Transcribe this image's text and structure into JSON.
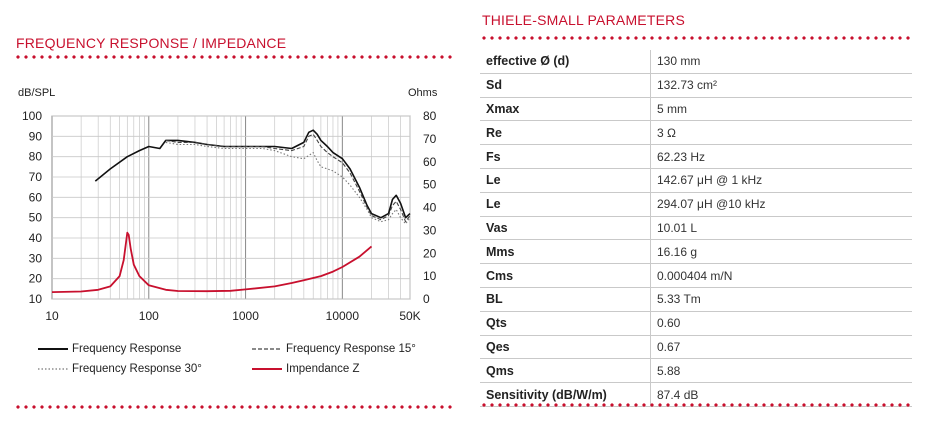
{
  "left_title": "FREQUENCY RESPONSE / IMPEDANCE",
  "right_title": "THIELE-SMALL PARAMETERS",
  "legend": {
    "fr": "Frequency Response",
    "fr15": "Frequency Response 15°",
    "fr30": "Frequency Response 30°",
    "imp": "Impendance Z"
  },
  "colors": {
    "accent": "#c8102e",
    "impedance": "#c8102e",
    "response": "#111111"
  },
  "chart_data": {
    "type": "line",
    "xscale": "log",
    "xlim": [
      10,
      50000
    ],
    "x_ticks": [
      "10",
      "100",
      "1000",
      "10000",
      "50K"
    ],
    "ylabel_left": "dB/SPL",
    "ylabel_right": "Ohms",
    "ylim_left": [
      10,
      100
    ],
    "ylim_right": [
      0,
      80
    ],
    "y_ticks_left": [
      "10",
      "20",
      "30",
      "40",
      "50",
      "60",
      "70",
      "80",
      "90",
      "100"
    ],
    "y_ticks_right": [
      "0",
      "10",
      "20",
      "30",
      "40",
      "50",
      "60",
      "70",
      "80"
    ],
    "grid": true,
    "series": [
      {
        "name": "Frequency Response",
        "axis": "left",
        "style": "solid",
        "points": [
          [
            28,
            68
          ],
          [
            40,
            74
          ],
          [
            60,
            80
          ],
          [
            80,
            83
          ],
          [
            100,
            85
          ],
          [
            130,
            84
          ],
          [
            150,
            88
          ],
          [
            200,
            88
          ],
          [
            300,
            87
          ],
          [
            400,
            86
          ],
          [
            600,
            85
          ],
          [
            1000,
            85
          ],
          [
            1500,
            85
          ],
          [
            2000,
            85
          ],
          [
            3000,
            84
          ],
          [
            4000,
            87
          ],
          [
            4500,
            92
          ],
          [
            5000,
            93
          ],
          [
            5500,
            91
          ],
          [
            6000,
            88
          ],
          [
            7000,
            85
          ],
          [
            8000,
            82
          ],
          [
            10000,
            79
          ],
          [
            12000,
            74
          ],
          [
            15000,
            65
          ],
          [
            18000,
            56
          ],
          [
            20000,
            52
          ],
          [
            25000,
            50
          ],
          [
            30000,
            52
          ],
          [
            33000,
            59
          ],
          [
            36000,
            61
          ],
          [
            40000,
            57
          ],
          [
            45000,
            50
          ],
          [
            50000,
            52
          ]
        ]
      },
      {
        "name": "Frequency Response 15°",
        "axis": "left",
        "style": "dashed",
        "points": [
          [
            150,
            88
          ],
          [
            200,
            87
          ],
          [
            300,
            87
          ],
          [
            400,
            86
          ],
          [
            600,
            85
          ],
          [
            1000,
            85
          ],
          [
            1500,
            85
          ],
          [
            2000,
            84
          ],
          [
            3000,
            83
          ],
          [
            4000,
            85
          ],
          [
            4500,
            90
          ],
          [
            5000,
            91
          ],
          [
            5500,
            88
          ],
          [
            6000,
            85
          ],
          [
            7000,
            82
          ],
          [
            8000,
            80
          ],
          [
            10000,
            77
          ],
          [
            12000,
            72
          ],
          [
            15000,
            63
          ],
          [
            18000,
            55
          ],
          [
            20000,
            51
          ],
          [
            25000,
            49
          ],
          [
            30000,
            51
          ],
          [
            33000,
            56
          ],
          [
            36000,
            58
          ],
          [
            40000,
            54
          ],
          [
            45000,
            48
          ],
          [
            50000,
            51
          ]
        ]
      },
      {
        "name": "Frequency Response 30°",
        "axis": "left",
        "style": "dotted",
        "points": [
          [
            150,
            87
          ],
          [
            200,
            86
          ],
          [
            300,
            86
          ],
          [
            400,
            85
          ],
          [
            600,
            84
          ],
          [
            1000,
            84
          ],
          [
            1500,
            84
          ],
          [
            2000,
            83
          ],
          [
            3000,
            80
          ],
          [
            4000,
            79
          ],
          [
            5000,
            82
          ],
          [
            5500,
            78
          ],
          [
            6000,
            75
          ],
          [
            7000,
            74
          ],
          [
            8000,
            73
          ],
          [
            10000,
            70
          ],
          [
            12000,
            66
          ],
          [
            15000,
            60
          ],
          [
            18000,
            54
          ],
          [
            20000,
            50
          ],
          [
            25000,
            48
          ],
          [
            30000,
            49
          ],
          [
            33000,
            52
          ],
          [
            36000,
            54
          ],
          [
            40000,
            50
          ],
          [
            45000,
            47
          ],
          [
            50000,
            50
          ]
        ]
      },
      {
        "name": "Impendance Z",
        "axis": "right",
        "style": "solid",
        "points": [
          [
            10,
            3
          ],
          [
            20,
            3.3
          ],
          [
            30,
            4
          ],
          [
            40,
            5.5
          ],
          [
            50,
            10
          ],
          [
            55,
            17
          ],
          [
            60,
            29
          ],
          [
            62,
            28
          ],
          [
            65,
            22
          ],
          [
            70,
            15
          ],
          [
            80,
            10
          ],
          [
            100,
            6
          ],
          [
            150,
            4
          ],
          [
            200,
            3.5
          ],
          [
            400,
            3.4
          ],
          [
            700,
            3.6
          ],
          [
            1000,
            4.2
          ],
          [
            2000,
            5.5
          ],
          [
            3000,
            7
          ],
          [
            4000,
            8.2
          ],
          [
            6000,
            10
          ],
          [
            8000,
            12
          ],
          [
            10000,
            14
          ],
          [
            15000,
            18.5
          ],
          [
            20000,
            23
          ]
        ]
      }
    ]
  },
  "params": [
    {
      "label": "effective Ø (d)",
      "value": "130 mm"
    },
    {
      "label": "Sd",
      "value": "132.73 cm²"
    },
    {
      "label": "Xmax",
      "value": "5 mm"
    },
    {
      "label": "Re",
      "value": "3 Ω"
    },
    {
      "label": "Fs",
      "value": "62.23 Hz"
    },
    {
      "label": "Le",
      "value": "142.67 μH @ 1 kHz"
    },
    {
      "label": "Le",
      "value": "294.07 μH @10 kHz"
    },
    {
      "label": "Vas",
      "value": "10.01 L"
    },
    {
      "label": "Mms",
      "value": "16.16 g"
    },
    {
      "label": "Cms",
      "value": "0.000404 m/N"
    },
    {
      "label": "BL",
      "value": "5.33 Tm"
    },
    {
      "label": "Qts",
      "value": "0.60"
    },
    {
      "label": "Qes",
      "value": "0.67"
    },
    {
      "label": "Qms",
      "value": "5.88"
    },
    {
      "label": "Sensitivity (dB/W/m)",
      "value": "87.4 dB"
    }
  ]
}
